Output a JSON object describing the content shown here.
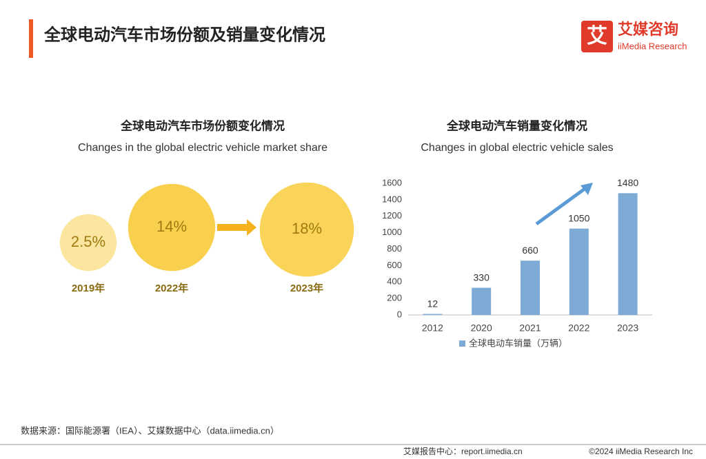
{
  "header": {
    "title": "全球电动汽车市场份额及销量变化情况",
    "logo_mark": "艾",
    "logo_cn": "艾媒咨询",
    "logo_en": "iiMedia Research"
  },
  "chart_data": [
    {
      "type": "bubble",
      "title": "全球电动汽车市场份额变化情况",
      "subtitle": "Changes in the global electric vehicle market share",
      "categories": [
        "2019年",
        "2022年",
        "2023年"
      ],
      "values": [
        2.5,
        14,
        18
      ],
      "value_labels": [
        "2.5%",
        "14%",
        "18%"
      ],
      "colors": [
        "#fbe6a0",
        "#f8d04e",
        "#f9d458"
      ]
    },
    {
      "type": "bar",
      "title": "全球电动汽车销量变化情况",
      "subtitle": "Changes in global electric vehicle sales",
      "categories": [
        "2012",
        "2020",
        "2021",
        "2022",
        "2023"
      ],
      "series": [
        {
          "name": "全球电动车销量（万辆）",
          "color": "#7eaad6",
          "values": [
            12,
            330,
            660,
            1050,
            1480
          ]
        }
      ],
      "ylim": [
        0,
        1600
      ],
      "yticks": [
        0,
        200,
        400,
        600,
        800,
        1000,
        1200,
        1400,
        1600
      ]
    }
  ],
  "source": "数据来源：国际能源署（IEA）、艾媒数据中心（data.iimedia.cn）",
  "footer": {
    "report": "艾媒报告中心：report.iimedia.cn",
    "copyright": "©2024 iiMedia Research Inc"
  }
}
